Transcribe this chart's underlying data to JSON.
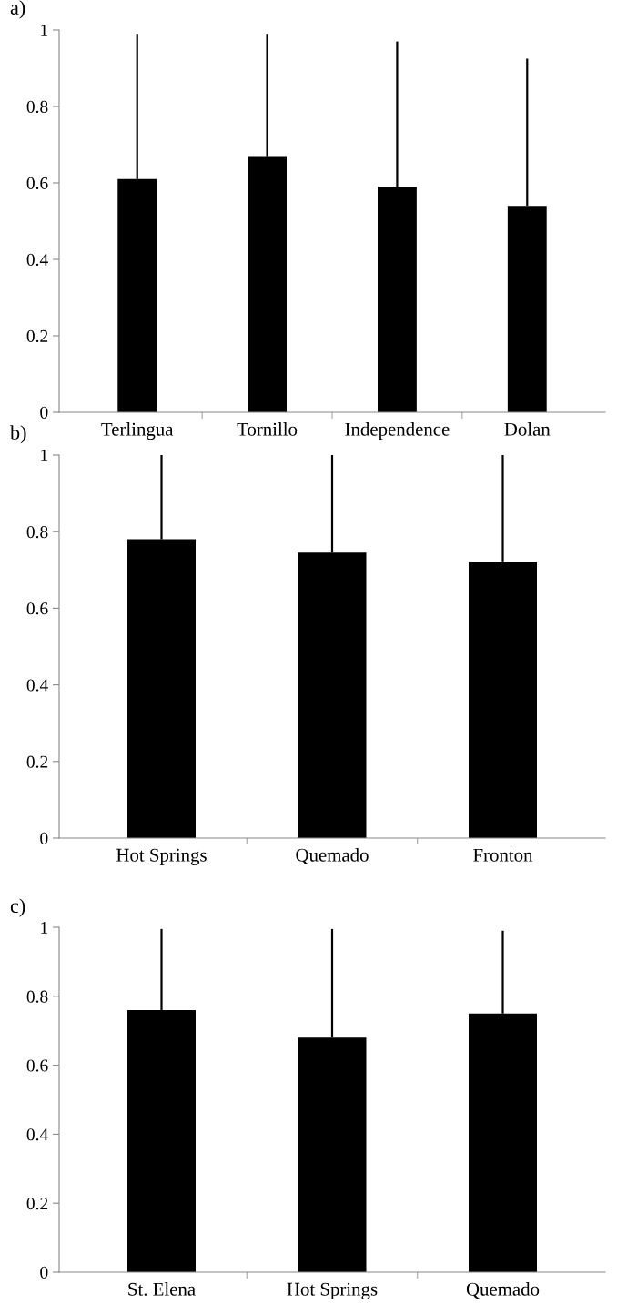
{
  "chart_data": [
    {
      "type": "bar",
      "title": "a)",
      "categories": [
        "Terlingua",
        "Tornillo",
        "Independence",
        "Dolan"
      ],
      "values": [
        0.61,
        0.67,
        0.59,
        0.54
      ],
      "errors": [
        [
          0.61,
          0.99
        ],
        [
          0.67,
          0.99
        ],
        [
          0.59,
          0.97
        ],
        [
          0.54,
          0.925
        ]
      ],
      "color": "#000000",
      "ylim": [
        0,
        1
      ],
      "yticks": [
        0,
        0.2,
        0.4,
        0.6,
        0.8,
        1
      ],
      "grid": false,
      "legend": false
    },
    {
      "type": "bar",
      "title": "b)",
      "categories": [
        "Hot Springs",
        "Quemado",
        "Fronton"
      ],
      "values": [
        0.78,
        0.745,
        0.72
      ],
      "errors": [
        [
          0.78,
          1.0
        ],
        [
          0.745,
          1.0
        ],
        [
          0.72,
          1.0
        ]
      ],
      "color": "#000000",
      "ylim": [
        0,
        1
      ],
      "yticks": [
        0,
        0.2,
        0.4,
        0.6,
        0.8,
        1
      ],
      "grid": false,
      "legend": false
    },
    {
      "type": "bar",
      "title": "c)",
      "categories": [
        "St. Elena",
        "Hot Springs",
        "Quemado"
      ],
      "values": [
        0.76,
        0.68,
        0.75
      ],
      "errors": [
        [
          0.76,
          0.995
        ],
        [
          0.68,
          0.995
        ],
        [
          0.75,
          0.99
        ]
      ],
      "color": "#000000",
      "ylim": [
        0,
        1
      ],
      "yticks": [
        0,
        0.2,
        0.4,
        0.6,
        0.8,
        1
      ],
      "grid": false,
      "legend": false
    }
  ]
}
